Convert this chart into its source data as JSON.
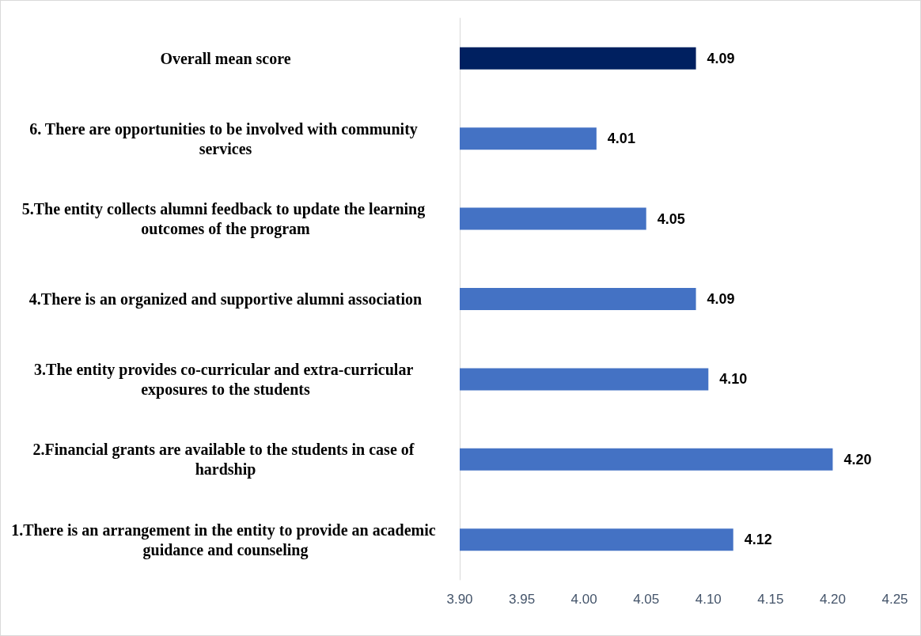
{
  "chart_data": {
    "type": "bar",
    "orientation": "horizontal",
    "categories": [
      "Overall mean score",
      "6. There are opportunities to be involved with community services",
      "5.The entity collects alumni feedback to update the learning outcomes of the program",
      "4.There is an organized and supportive alumni association",
      "3.The entity provides co-curricular and extra-curricular exposures to the students",
      "2.Financial grants are available to the students in case of hardship",
      "1.There is an arrangement in the entity to provide an academic guidance and counseling"
    ],
    "values": [
      4.09,
      4.01,
      4.05,
      4.09,
      4.1,
      4.2,
      4.12
    ],
    "value_labels": [
      "4.09",
      "4.01",
      "4.05",
      "4.09",
      "4.10",
      "4.20",
      "4.12"
    ],
    "colors": [
      "#002060",
      "#4472c4",
      "#4472c4",
      "#4472c4",
      "#4472c4",
      "#4472c4",
      "#4472c4"
    ],
    "xlim": [
      3.9,
      4.25
    ],
    "xticks": [
      {
        "value": 3.9,
        "label": "3.90"
      },
      {
        "value": 3.95,
        "label": "3.95"
      },
      {
        "value": 4.0,
        "label": "4.00"
      },
      {
        "value": 4.05,
        "label": "4.05"
      },
      {
        "value": 4.1,
        "label": "4.10"
      },
      {
        "value": 4.15,
        "label": "4.15"
      },
      {
        "value": 4.2,
        "label": "4.20"
      },
      {
        "value": 4.25,
        "label": "4.25"
      }
    ],
    "grid": false
  }
}
